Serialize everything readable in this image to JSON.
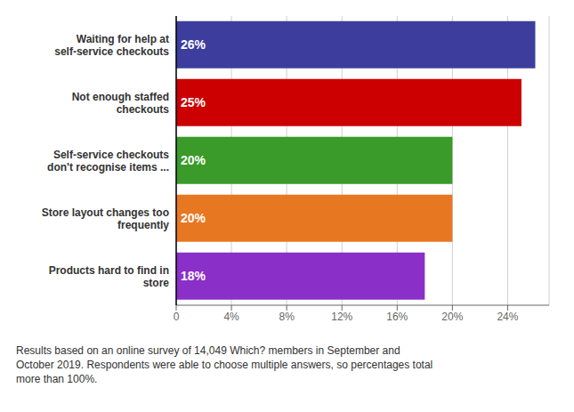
{
  "chart_data": {
    "type": "bar",
    "orientation": "horizontal",
    "categories": [
      "Products hard to find in\nstore",
      "Store layout changes too\nfrequently",
      "Self-service checkouts\ndon't recognise items ...",
      "Not enough staffed\ncheckouts",
      "Waiting for help at\nself-service checkouts"
    ],
    "values": [
      18,
      20,
      20,
      25,
      26
    ],
    "value_labels": [
      "18%",
      "20%",
      "20%",
      "25%",
      "26%"
    ],
    "data_labels": true,
    "colors": [
      "#8B2FC9",
      "#E87722",
      "#3A9A2A",
      "#CC0000",
      "#3D3D9E"
    ],
    "xlim": [
      0,
      27
    ],
    "xticks": [
      0,
      {
        "value": 4,
        "label": "4%"
      },
      {
        "value": 8,
        "label": "8%"
      },
      {
        "value": 12,
        "label": "12%"
      },
      {
        "value": 16,
        "label": "16%"
      },
      {
        "value": 20,
        "label": "20%"
      },
      {
        "value": 24,
        "label": "24%"
      }
    ],
    "grid": true,
    "annotations": [
      "Results based on an online survey of 14,049 Which? members in September and\nOctober 2019. Respondents were able to choose multiple answers, so percentages total\nmore than 100%."
    ]
  }
}
